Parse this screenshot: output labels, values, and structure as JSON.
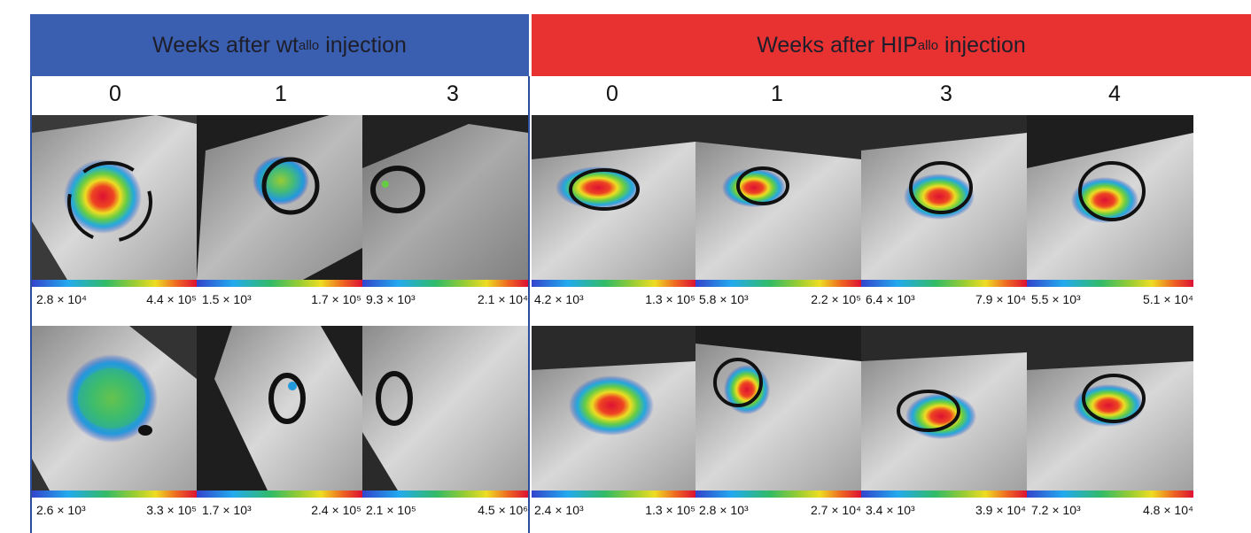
{
  "headers": {
    "left": {
      "text": "Weeks after wt",
      "sup": "allo",
      "suffix": " injection"
    },
    "right": {
      "text": "Weeks after HIP",
      "sup": "allo",
      "suffix": " injection"
    }
  },
  "weeks": {
    "wt": [
      "0",
      "1",
      "3"
    ],
    "hip": [
      "0",
      "1",
      "3",
      "4"
    ]
  },
  "scales": {
    "row1": [
      {
        "min": "2.8 × 10⁴",
        "max": "4.4 × 10⁵"
      },
      {
        "min": "1.5 × 10³",
        "max": "1.7 × 10⁵"
      },
      {
        "min": "9.3 × 10³",
        "max": "2.1 × 10⁴"
      },
      {
        "min": "4.2 × 10³",
        "max": "1.3 × 10⁵"
      },
      {
        "min": "5.8 × 10³",
        "max": "2.2 × 10⁵"
      },
      {
        "min": "6.4 × 10³",
        "max": "7.9 × 10⁴"
      },
      {
        "min": "5.5 × 10³",
        "max": "5.1 × 10⁴"
      }
    ],
    "row2": [
      {
        "min": "2.6 × 10³",
        "max": "3.3 × 10⁵"
      },
      {
        "min": "1.7 × 10³",
        "max": "2.4 × 10⁵"
      },
      {
        "min": "2.1 × 10⁵",
        "max": "4.5 × 10⁶"
      },
      {
        "min": "2.4 × 10³",
        "max": "1.3 × 10⁵"
      },
      {
        "min": "2.8 × 10³",
        "max": "2.7 × 10⁴"
      },
      {
        "min": "3.4 × 10³",
        "max": "3.9 × 10⁴"
      },
      {
        "min": "7.2 × 10³",
        "max": "4.8 × 10⁴"
      }
    ]
  },
  "colors": {
    "wt_header": "#3a5fb0",
    "hip_header": "#e83232"
  }
}
